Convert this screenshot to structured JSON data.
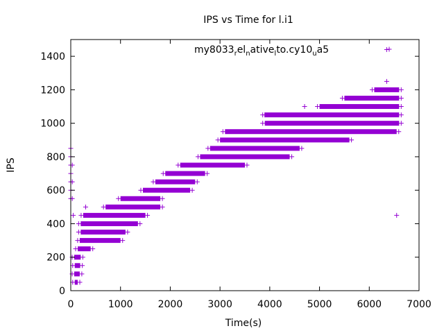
{
  "chart_data": {
    "type": "scatter",
    "title": "IPS vs Time for l.i1",
    "xlabel": "Time(s)",
    "ylabel": "IPS",
    "xlim": [
      0,
      7000
    ],
    "ylim": [
      0,
      1500
    ],
    "x_ticks": [
      0,
      1000,
      2000,
      3000,
      4000,
      5000,
      6000,
      7000
    ],
    "y_ticks": [
      0,
      200,
      400,
      600,
      800,
      1000,
      1200,
      1400
    ],
    "grid": false,
    "legend_position": "top-right",
    "marker": "+",
    "color": "#9400D3",
    "series": [
      {
        "name": "my8033_relnative_lto.cy10_ua5",
        "bands": [
          {
            "y": 50,
            "x": [
              80,
              140
            ]
          },
          {
            "y": 100,
            "x": [
              70,
              180
            ]
          },
          {
            "y": 150,
            "x": [
              80,
              190
            ]
          },
          {
            "y": 200,
            "x": [
              70,
              200
            ]
          },
          {
            "y": 250,
            "x": [
              140,
              400
            ]
          },
          {
            "y": 300,
            "x": [
              180,
              1000
            ]
          },
          {
            "y": 350,
            "x": [
              200,
              1100
            ]
          },
          {
            "y": 400,
            "x": [
              200,
              1350
            ]
          },
          {
            "y": 450,
            "x": [
              250,
              1500
            ]
          },
          {
            "y": 500,
            "x": [
              700,
              1800
            ]
          },
          {
            "y": 550,
            "x": [
              1000,
              1800
            ]
          },
          {
            "y": 600,
            "x": [
              1450,
              2400
            ]
          },
          {
            "y": 650,
            "x": [
              1700,
              2500
            ]
          },
          {
            "y": 700,
            "x": [
              1900,
              2700
            ]
          },
          {
            "y": 750,
            "x": [
              2200,
              3500
            ]
          },
          {
            "y": 800,
            "x": [
              2600,
              4400
            ]
          },
          {
            "y": 850,
            "x": [
              2800,
              4600
            ]
          },
          {
            "y": 900,
            "x": [
              3000,
              5600
            ]
          },
          {
            "y": 950,
            "x": [
              3100,
              6550
            ]
          },
          {
            "y": 1000,
            "x": [
              3900,
              6600
            ]
          },
          {
            "y": 1050,
            "x": [
              3900,
              6600
            ]
          },
          {
            "y": 1100,
            "x": [
              5000,
              6600
            ]
          },
          {
            "y": 1150,
            "x": [
              5500,
              6600
            ]
          },
          {
            "y": 1200,
            "x": [
              6100,
              6600
            ]
          }
        ],
        "start_column": [
          {
            "x": 0,
            "y": 550
          },
          {
            "x": 0,
            "y": 600
          },
          {
            "x": 0,
            "y": 650
          },
          {
            "x": 0,
            "y": 700
          },
          {
            "x": 0,
            "y": 750
          },
          {
            "x": 0,
            "y": 800
          },
          {
            "x": 0,
            "y": 850
          },
          {
            "x": 30,
            "y": 550
          },
          {
            "x": 30,
            "y": 650
          },
          {
            "x": 30,
            "y": 750
          },
          {
            "x": 50,
            "y": 450
          }
        ],
        "outliers": [
          {
            "x": 300,
            "y": 500
          },
          {
            "x": 3900,
            "y": 1050
          },
          {
            "x": 4700,
            "y": 1100
          },
          {
            "x": 6350,
            "y": 1250
          },
          {
            "x": 6350,
            "y": 1440
          },
          {
            "x": 6550,
            "y": 450
          }
        ]
      }
    ]
  }
}
